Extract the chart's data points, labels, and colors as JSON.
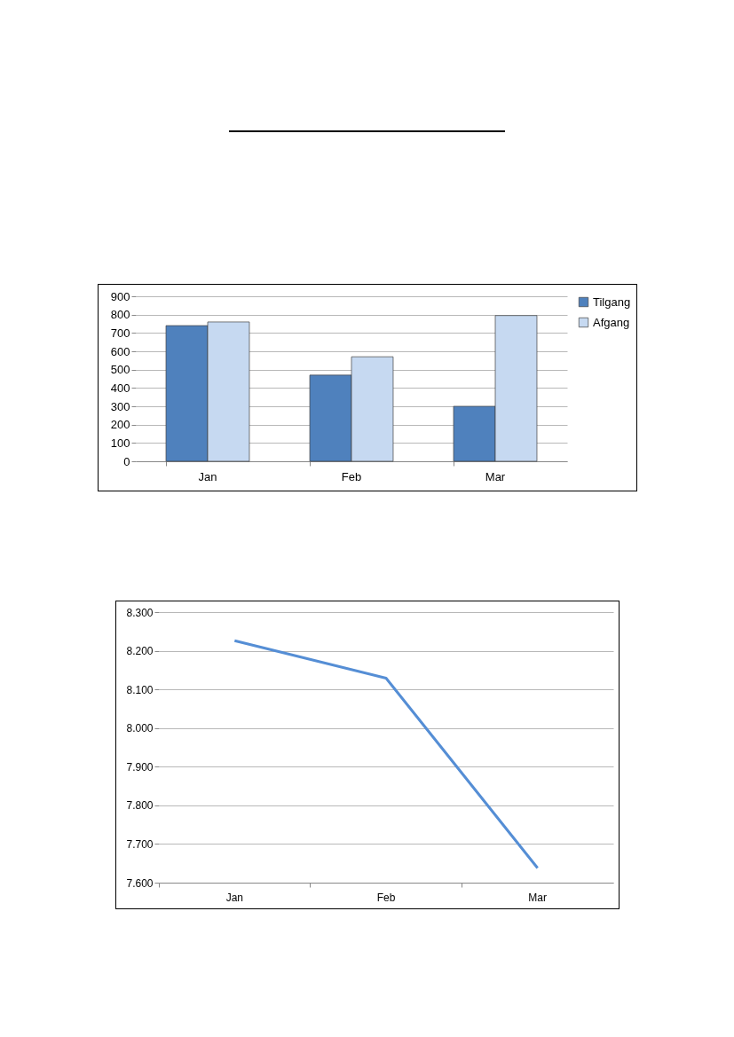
{
  "chart_data": [
    {
      "type": "bar",
      "categories": [
        "Jan",
        "Feb",
        "Mar"
      ],
      "series": [
        {
          "name": "Tilgang",
          "color": "#4f81bd",
          "values": [
            740,
            470,
            300
          ]
        },
        {
          "name": "Afgang",
          "color": "#c6d9f1",
          "values": [
            760,
            570,
            795
          ]
        }
      ],
      "ylim": [
        0,
        900
      ],
      "yticks": [
        0,
        100,
        200,
        300,
        400,
        500,
        600,
        700,
        800,
        900
      ],
      "grid": "y",
      "legend": "right"
    },
    {
      "type": "line",
      "categories": [
        "Jan",
        "Feb",
        "Mar"
      ],
      "series": [
        {
          "color": "#558ed5",
          "values": [
            8226,
            8129,
            7638
          ]
        }
      ],
      "ylim": [
        7600,
        8300
      ],
      "yticks": [
        {
          "value": 7600,
          "label": "7.600"
        },
        {
          "value": 7700,
          "label": "7.700"
        },
        {
          "value": 7800,
          "label": "7.800"
        },
        {
          "value": 7900,
          "label": "7.900"
        },
        {
          "value": 8000,
          "label": "8.000"
        },
        {
          "value": 8100,
          "label": "8.100"
        },
        {
          "value": 8200,
          "label": "8.200"
        },
        {
          "value": 8300,
          "label": "8.300"
        }
      ],
      "grid": "y"
    }
  ]
}
